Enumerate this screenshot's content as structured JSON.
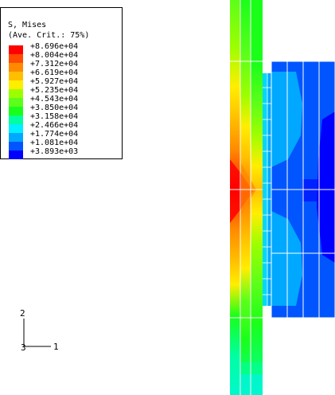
{
  "legend": {
    "title_line1": "S, Mises",
    "title_line2": "(Ave. Crit.: 75%)",
    "entries": [
      {
        "value": "+8.696e+04",
        "color": "#ff0000"
      },
      {
        "value": "+8.004e+04",
        "color": "#ff4a00"
      },
      {
        "value": "+7.312e+04",
        "color": "#ff8a00"
      },
      {
        "value": "+6.619e+04",
        "color": "#ffbf00"
      },
      {
        "value": "+5.927e+04",
        "color": "#ffee00"
      },
      {
        "value": "+5.235e+04",
        "color": "#9cff00"
      },
      {
        "value": "+4.543e+04",
        "color": "#5cff1a"
      },
      {
        "value": "+3.850e+04",
        "color": "#1aff1a"
      },
      {
        "value": "+3.158e+04",
        "color": "#00ffa0"
      },
      {
        "value": "+2.466e+04",
        "color": "#00f0ff"
      },
      {
        "value": "+1.774e+04",
        "color": "#00a8ff"
      },
      {
        "value": "+1.081e+04",
        "color": "#0055ff"
      },
      {
        "value": "+3.893e+03",
        "color": "#0000ff"
      }
    ]
  },
  "triad": {
    "axis_vertical": "2",
    "axis_horizontal": "1",
    "axis_out": "3"
  }
}
